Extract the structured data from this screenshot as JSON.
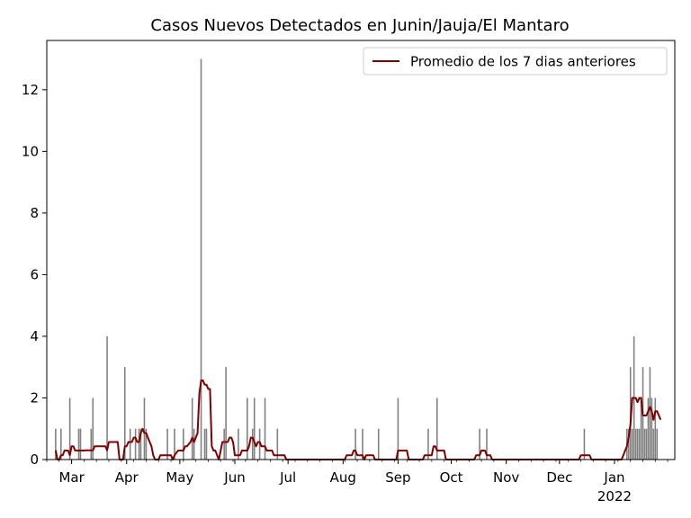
{
  "chart_data": {
    "type": "bar",
    "title": "Casos Nuevos Detectados en Junin/Jauja/El Mantaro",
    "xlabel": "",
    "ylabel": "",
    "x_range": [
      "2021-02-15",
      "2022-02-04"
    ],
    "ylim": [
      0,
      13.6
    ],
    "y_ticks": [
      0,
      2,
      4,
      6,
      8,
      10,
      12
    ],
    "x_ticks": [
      {
        "date": "2021-03-01",
        "label": "Mar",
        "sublabel": ""
      },
      {
        "date": "2021-04-01",
        "label": "Apr",
        "sublabel": ""
      },
      {
        "date": "2021-05-01",
        "label": "May",
        "sublabel": ""
      },
      {
        "date": "2021-06-01",
        "label": "Jun",
        "sublabel": ""
      },
      {
        "date": "2021-07-01",
        "label": "Jul",
        "sublabel": ""
      },
      {
        "date": "2021-08-01",
        "label": "Aug",
        "sublabel": ""
      },
      {
        "date": "2021-09-01",
        "label": "Sep",
        "sublabel": ""
      },
      {
        "date": "2021-10-01",
        "label": "Oct",
        "sublabel": ""
      },
      {
        "date": "2021-11-01",
        "label": "Nov",
        "sublabel": ""
      },
      {
        "date": "2021-12-01",
        "label": "Dec",
        "sublabel": ""
      },
      {
        "date": "2022-01-01",
        "label": "Jan",
        "sublabel": "2022"
      }
    ],
    "grid": false,
    "legend_position": "upper right",
    "bar_color": "#808080",
    "line_color": "#800000",
    "series": [
      {
        "kind": "bar",
        "points": [
          [
            "2021-02-20",
            1
          ],
          [
            "2021-02-23",
            1
          ],
          [
            "2021-02-28",
            2
          ],
          [
            "2021-03-05",
            1
          ],
          [
            "2021-03-06",
            1
          ],
          [
            "2021-03-12",
            1
          ],
          [
            "2021-03-13",
            2
          ],
          [
            "2021-03-21",
            4
          ],
          [
            "2021-03-31",
            3
          ],
          [
            "2021-04-03",
            1
          ],
          [
            "2021-04-06",
            1
          ],
          [
            "2021-04-08",
            1
          ],
          [
            "2021-04-09",
            1
          ],
          [
            "2021-04-11",
            2
          ],
          [
            "2021-04-12",
            1
          ],
          [
            "2021-04-24",
            1
          ],
          [
            "2021-04-28",
            1
          ],
          [
            "2021-05-03",
            1
          ],
          [
            "2021-05-08",
            2
          ],
          [
            "2021-05-09",
            1
          ],
          [
            "2021-05-13",
            13
          ],
          [
            "2021-05-15",
            1
          ],
          [
            "2021-05-16",
            1
          ],
          [
            "2021-05-26",
            1
          ],
          [
            "2021-05-27",
            3
          ],
          [
            "2021-06-03",
            1
          ],
          [
            "2021-06-08",
            2
          ],
          [
            "2021-06-11",
            1
          ],
          [
            "2021-06-12",
            2
          ],
          [
            "2021-06-15",
            1
          ],
          [
            "2021-06-18",
            2
          ],
          [
            "2021-06-25",
            1
          ],
          [
            "2021-08-08",
            1
          ],
          [
            "2021-08-12",
            1
          ],
          [
            "2021-08-21",
            1
          ],
          [
            "2021-09-01",
            2
          ],
          [
            "2021-09-18",
            1
          ],
          [
            "2021-09-23",
            2
          ],
          [
            "2021-10-17",
            1
          ],
          [
            "2021-10-21",
            1
          ],
          [
            "2021-12-15",
            1
          ],
          [
            "2022-01-08",
            1
          ],
          [
            "2022-01-09",
            1
          ],
          [
            "2022-01-10",
            3
          ],
          [
            "2022-01-11",
            1
          ],
          [
            "2022-01-12",
            4
          ],
          [
            "2022-01-13",
            1
          ],
          [
            "2022-01-14",
            1
          ],
          [
            "2022-01-15",
            1
          ],
          [
            "2022-01-16",
            2
          ],
          [
            "2022-01-17",
            3
          ],
          [
            "2022-01-18",
            1
          ],
          [
            "2022-01-19",
            1
          ],
          [
            "2022-01-20",
            2
          ],
          [
            "2022-01-21",
            3
          ],
          [
            "2022-01-22",
            2
          ],
          [
            "2022-01-23",
            1
          ],
          [
            "2022-01-24",
            2
          ],
          [
            "2022-01-25",
            1
          ]
        ]
      },
      {
        "kind": "line",
        "name": "Promedio de los 7 dias anteriores",
        "points": [
          [
            "2021-02-20",
            0.3
          ],
          [
            "2021-02-21",
            0
          ],
          [
            "2021-02-22",
            0
          ],
          [
            "2021-02-23",
            0.14
          ],
          [
            "2021-02-24",
            0.14
          ],
          [
            "2021-02-25",
            0.29
          ],
          [
            "2021-02-27",
            0.29
          ],
          [
            "2021-02-28",
            0.14
          ],
          [
            "2021-03-01",
            0.43
          ],
          [
            "2021-03-02",
            0.43
          ],
          [
            "2021-03-03",
            0.29
          ],
          [
            "2021-03-08",
            0.29
          ],
          [
            "2021-03-09",
            0.3
          ],
          [
            "2021-03-13",
            0.3
          ],
          [
            "2021-03-14",
            0.43
          ],
          [
            "2021-03-20",
            0.43
          ],
          [
            "2021-03-21",
            0.3
          ],
          [
            "2021-03-22",
            0.57
          ],
          [
            "2021-03-27",
            0.57
          ],
          [
            "2021-03-28",
            0
          ],
          [
            "2021-03-30",
            0
          ],
          [
            "2021-03-31",
            0.43
          ],
          [
            "2021-04-01",
            0.43
          ],
          [
            "2021-04-02",
            0.57
          ],
          [
            "2021-04-04",
            0.57
          ],
          [
            "2021-04-05",
            0.71
          ],
          [
            "2021-04-06",
            0.71
          ],
          [
            "2021-04-07",
            0.57
          ],
          [
            "2021-04-08",
            0.57
          ],
          [
            "2021-04-09",
            0.86
          ],
          [
            "2021-04-10",
            1
          ],
          [
            "2021-04-11",
            0.86
          ],
          [
            "2021-04-12",
            0.86
          ],
          [
            "2021-04-13",
            0.71
          ],
          [
            "2021-04-14",
            0.57
          ],
          [
            "2021-04-15",
            0.43
          ],
          [
            "2021-04-16",
            0.14
          ],
          [
            "2021-04-17",
            0
          ],
          [
            "2021-04-19",
            0
          ],
          [
            "2021-04-20",
            0.14
          ],
          [
            "2021-04-26",
            0.14
          ],
          [
            "2021-04-27",
            0
          ],
          [
            "2021-04-28",
            0.14
          ],
          [
            "2021-04-30",
            0.29
          ],
          [
            "2021-05-03",
            0.29
          ],
          [
            "2021-05-04",
            0.43
          ],
          [
            "2021-05-05",
            0.43
          ],
          [
            "2021-05-07",
            0.57
          ],
          [
            "2021-05-08",
            0.71
          ],
          [
            "2021-05-09",
            0.57
          ],
          [
            "2021-05-10",
            0.71
          ],
          [
            "2021-05-11",
            0.86
          ],
          [
            "2021-05-12",
            2.14
          ],
          [
            "2021-05-13",
            2.57
          ],
          [
            "2021-05-14",
            2.57
          ],
          [
            "2021-05-15",
            2.43
          ],
          [
            "2021-05-16",
            2.43
          ],
          [
            "2021-05-17",
            2.29
          ],
          [
            "2021-05-18",
            2.29
          ],
          [
            "2021-05-19",
            0.43
          ],
          [
            "2021-05-20",
            0.29
          ],
          [
            "2021-05-21",
            0.29
          ],
          [
            "2021-05-22",
            0.14
          ],
          [
            "2021-05-23",
            0
          ],
          [
            "2021-05-25",
            0.57
          ],
          [
            "2021-05-27",
            0.57
          ],
          [
            "2021-05-28",
            0.57
          ],
          [
            "2021-05-29",
            0.71
          ],
          [
            "2021-05-30",
            0.71
          ],
          [
            "2021-05-31",
            0.57
          ],
          [
            "2021-06-01",
            0.14
          ],
          [
            "2021-06-04",
            0.14
          ],
          [
            "2021-06-05",
            0.29
          ],
          [
            "2021-06-07",
            0.29
          ],
          [
            "2021-06-08",
            0.29
          ],
          [
            "2021-06-09",
            0.43
          ],
          [
            "2021-06-10",
            0.71
          ],
          [
            "2021-06-11",
            0.71
          ],
          [
            "2021-06-12",
            0.57
          ],
          [
            "2021-06-13",
            0.43
          ],
          [
            "2021-06-14",
            0.57
          ],
          [
            "2021-06-15",
            0.57
          ],
          [
            "2021-06-16",
            0.43
          ],
          [
            "2021-06-17",
            0.43
          ],
          [
            "2021-06-18",
            0.43
          ],
          [
            "2021-06-19",
            0.29
          ],
          [
            "2021-06-21",
            0.29
          ],
          [
            "2021-06-22",
            0.29
          ],
          [
            "2021-06-23",
            0.14
          ],
          [
            "2021-06-24",
            0.14
          ],
          [
            "2021-06-29",
            0.14
          ],
          [
            "2021-06-30",
            0
          ],
          [
            "2021-08-02",
            0
          ],
          [
            "2021-08-03",
            0.14
          ],
          [
            "2021-08-06",
            0.14
          ],
          [
            "2021-08-07",
            0.29
          ],
          [
            "2021-08-08",
            0.29
          ],
          [
            "2021-08-09",
            0.14
          ],
          [
            "2021-08-12",
            0.14
          ],
          [
            "2021-08-13",
            0
          ],
          [
            "2021-08-14",
            0.14
          ],
          [
            "2021-08-18",
            0.14
          ],
          [
            "2021-08-19",
            0
          ],
          [
            "2021-08-31",
            0
          ],
          [
            "2021-09-01",
            0.29
          ],
          [
            "2021-09-06",
            0.29
          ],
          [
            "2021-09-07",
            0
          ],
          [
            "2021-09-15",
            0
          ],
          [
            "2021-09-16",
            0.14
          ],
          [
            "2021-09-20",
            0.14
          ],
          [
            "2021-09-21",
            0.43
          ],
          [
            "2021-09-22",
            0.43
          ],
          [
            "2021-09-23",
            0.29
          ],
          [
            "2021-09-27",
            0.29
          ],
          [
            "2021-09-28",
            0
          ],
          [
            "2021-10-14",
            0
          ],
          [
            "2021-10-15",
            0.14
          ],
          [
            "2021-10-17",
            0.14
          ],
          [
            "2021-10-18",
            0.29
          ],
          [
            "2021-10-20",
            0.29
          ],
          [
            "2021-10-21",
            0.14
          ],
          [
            "2021-10-23",
            0.14
          ],
          [
            "2021-10-24",
            0
          ],
          [
            "2021-12-12",
            0
          ],
          [
            "2021-12-13",
            0.14
          ],
          [
            "2021-12-18",
            0.14
          ],
          [
            "2021-12-19",
            0
          ],
          [
            "2022-01-05",
            0
          ],
          [
            "2022-01-06",
            0.14
          ],
          [
            "2022-01-07",
            0.29
          ],
          [
            "2022-01-08",
            0.43
          ],
          [
            "2022-01-09",
            0.71
          ],
          [
            "2022-01-10",
            1.14
          ],
          [
            "2022-01-11",
            2
          ],
          [
            "2022-01-12",
            2
          ],
          [
            "2022-01-13",
            2
          ],
          [
            "2022-01-14",
            1.86
          ],
          [
            "2022-01-15",
            2
          ],
          [
            "2022-01-16",
            2
          ],
          [
            "2022-01-17",
            1.43
          ],
          [
            "2022-01-18",
            1.43
          ],
          [
            "2022-01-19",
            1.43
          ],
          [
            "2022-01-20",
            1.57
          ],
          [
            "2022-01-21",
            1.71
          ],
          [
            "2022-01-22",
            1.57
          ],
          [
            "2022-01-23",
            1.29
          ],
          [
            "2022-01-24",
            1.57
          ],
          [
            "2022-01-25",
            1.57
          ],
          [
            "2022-01-26",
            1.43
          ],
          [
            "2022-01-27",
            1.29
          ]
        ]
      }
    ]
  }
}
